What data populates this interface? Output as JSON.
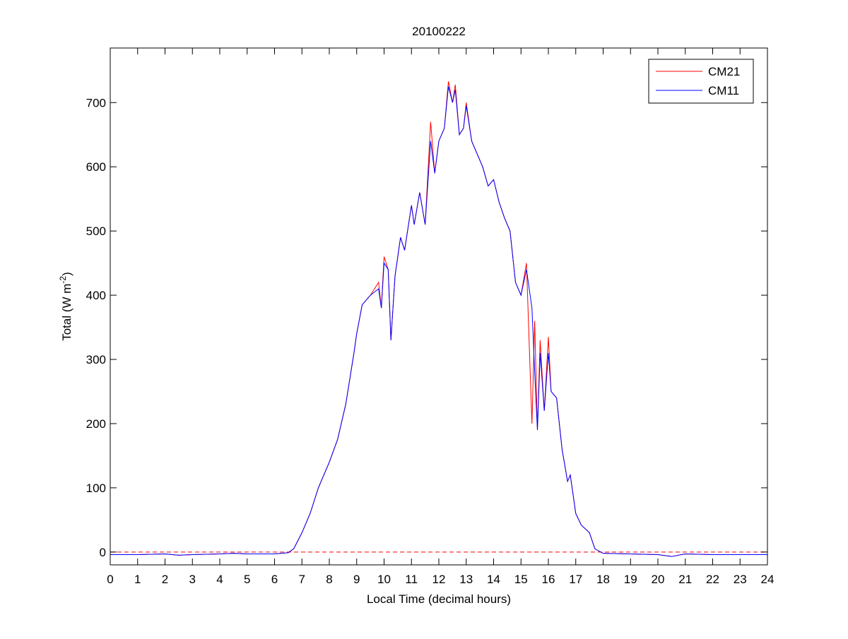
{
  "chart_data": {
    "type": "line",
    "title": "20100222",
    "xlabel": "Local Time (decimal hours)",
    "ylabel": {
      "text": "Total (W m",
      "sup": "-2",
      "tail": ")"
    },
    "x": [
      0,
      1,
      2,
      2.5,
      3,
      4,
      4.5,
      5,
      6,
      6.5,
      6.7,
      7,
      7.3,
      7.6,
      8,
      8.3,
      8.6,
      8.9,
      9.0,
      9.2,
      9.5,
      9.8,
      9.9,
      10.0,
      10.15,
      10.25,
      10.4,
      10.6,
      10.75,
      11.0,
      11.1,
      11.3,
      11.5,
      11.7,
      11.85,
      12.0,
      12.2,
      12.35,
      12.5,
      12.6,
      12.75,
      12.9,
      13.0,
      13.2,
      13.4,
      13.6,
      13.8,
      14.0,
      14.2,
      14.4,
      14.6,
      14.8,
      15.0,
      15.2,
      15.4,
      15.5,
      15.6,
      15.7,
      15.85,
      16.0,
      16.1,
      16.3,
      16.5,
      16.7,
      16.8,
      17.0,
      17.2,
      17.5,
      17.7,
      18.0,
      19,
      20,
      20.5,
      21,
      22,
      23,
      24
    ],
    "series": [
      {
        "name": "CM21",
        "color": "#ff0000",
        "values": [
          -4,
          -4,
          -3,
          -5,
          -4,
          -3,
          -2,
          -3,
          -3,
          -1,
          5,
          30,
          60,
          100,
          140,
          175,
          230,
          310,
          340,
          385,
          400,
          420,
          380,
          460,
          440,
          330,
          430,
          490,
          470,
          540,
          510,
          560,
          510,
          670,
          590,
          640,
          660,
          733,
          700,
          728,
          650,
          660,
          700,
          640,
          620,
          600,
          570,
          580,
          545,
          520,
          500,
          420,
          400,
          450,
          200,
          360,
          190,
          330,
          220,
          335,
          250,
          240,
          160,
          110,
          120,
          60,
          42,
          30,
          5,
          -2,
          -3,
          -4,
          -7,
          -3,
          -4,
          -4,
          -4
        ]
      },
      {
        "name": "CM11",
        "color": "#0000ff",
        "values": [
          -4,
          -4,
          -3,
          -5,
          -4,
          -3,
          -2,
          -3,
          -3,
          -1,
          5,
          30,
          60,
          100,
          140,
          175,
          230,
          310,
          340,
          385,
          400,
          410,
          380,
          450,
          440,
          330,
          430,
          490,
          470,
          540,
          510,
          560,
          510,
          640,
          590,
          640,
          660,
          725,
          700,
          720,
          650,
          660,
          695,
          640,
          620,
          600,
          570,
          580,
          545,
          520,
          500,
          420,
          400,
          440,
          380,
          280,
          190,
          310,
          220,
          310,
          250,
          240,
          160,
          110,
          120,
          60,
          42,
          30,
          5,
          -2,
          -3,
          -4,
          -7,
          -3,
          -4,
          -4,
          -4
        ]
      }
    ],
    "xlim": [
      0,
      24
    ],
    "ylim": [
      -20,
      785
    ],
    "xticks": [
      0,
      1,
      2,
      3,
      4,
      5,
      6,
      7,
      8,
      9,
      10,
      11,
      12,
      13,
      14,
      15,
      16,
      17,
      18,
      19,
      20,
      21,
      22,
      23,
      24
    ],
    "yticks": [
      0,
      100,
      200,
      300,
      400,
      500,
      600,
      700
    ],
    "reference_line": {
      "value": 0,
      "color": "#ff0000",
      "style": "dashed"
    },
    "legend": "upper right",
    "grid": false
  }
}
